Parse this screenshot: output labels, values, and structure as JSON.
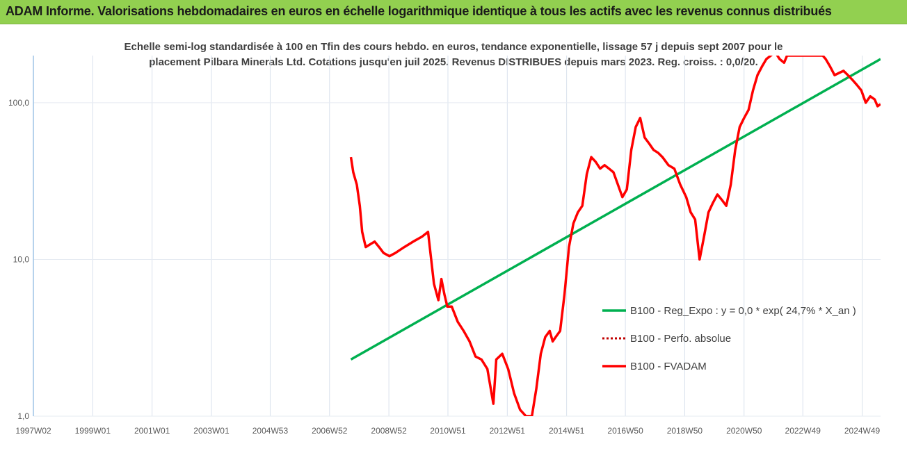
{
  "header": {
    "title": "ADAM Informe. Valorisations hebdomadaires en euros en échelle logarithmique identique à tous les actifs avec les revenus connus distribués"
  },
  "colors": {
    "header_bg": "#92d050",
    "accent_corner": "#f0c000",
    "series_fvadam": "#ff0000",
    "series_perfo": "#c00000",
    "series_reg": "#00b050",
    "grid": "#d9e1ec"
  },
  "chart_data": {
    "type": "line",
    "title_line1": "Echelle semi-log standardisée à 100 en Tfin des cours hebdo. en euros, tendance exponentielle, lissage 57 j depuis sept 2007  pour le",
    "title_line2": "placement Pilbara Minerals Ltd. Cotations jusqu'en juil 2025. Revenus DISTRIBUES depuis mars 2023.  Reg. croiss. : 0,0/20.",
    "y_scale": "log",
    "ylim": [
      1,
      200
    ],
    "y_ticks": [
      {
        "value": 1,
        "label": "1,0"
      },
      {
        "value": 10,
        "label": "10,0"
      },
      {
        "value": 100,
        "label": "100,0"
      }
    ],
    "xlim": [
      1997.0,
      2025.55
    ],
    "x_ticks": [
      {
        "x": 1997.0,
        "label": "1997W02"
      },
      {
        "x": 1999.0,
        "label": "1999W01"
      },
      {
        "x": 2001.0,
        "label": "2001W01"
      },
      {
        "x": 2003.0,
        "label": "2003W01"
      },
      {
        "x": 2004.98,
        "label": "2004W53"
      },
      {
        "x": 2006.98,
        "label": "2006W52"
      },
      {
        "x": 2008.98,
        "label": "2008W52"
      },
      {
        "x": 2010.97,
        "label": "2010W51"
      },
      {
        "x": 2012.97,
        "label": "2012W51"
      },
      {
        "x": 2014.97,
        "label": "2014W51"
      },
      {
        "x": 2016.95,
        "label": "2016W50"
      },
      {
        "x": 2018.95,
        "label": "2018W50"
      },
      {
        "x": 2020.95,
        "label": "2020W50"
      },
      {
        "x": 2022.93,
        "label": "2022W49"
      },
      {
        "x": 2024.93,
        "label": "2024W49"
      }
    ],
    "grid": "vertical",
    "legend_position": "right",
    "series": [
      {
        "name": "B100 - Reg_Expo : y = 0,0 * exp( 24,7% *  X_an )",
        "color": "#00b050",
        "style": "solid",
        "x": [
          2007.7,
          2025.55
        ],
        "y": [
          2.3,
          190
        ]
      },
      {
        "name": "B100 - Perfo. absolue",
        "color": "#c00000",
        "style": "dotted",
        "x": [],
        "y": []
      },
      {
        "name": "B100 - FVADAM",
        "color": "#ff0000",
        "style": "solid",
        "x": [
          2007.7,
          2007.78,
          2007.9,
          2008.0,
          2008.08,
          2008.2,
          2008.35,
          2008.5,
          2008.65,
          2008.8,
          2009.0,
          2009.2,
          2009.5,
          2009.8,
          2010.1,
          2010.3,
          2010.5,
          2010.65,
          2010.75,
          2010.85,
          2010.95,
          2011.1,
          2011.3,
          2011.5,
          2011.7,
          2011.9,
          2012.1,
          2012.3,
          2012.5,
          2012.6,
          2012.8,
          2013.0,
          2013.2,
          2013.4,
          2013.6,
          2013.8,
          2013.95,
          2014.1,
          2014.25,
          2014.4,
          2014.5,
          2014.6,
          2014.75,
          2014.9,
          2015.05,
          2015.2,
          2015.35,
          2015.5,
          2015.65,
          2015.8,
          2015.95,
          2016.1,
          2016.25,
          2016.4,
          2016.55,
          2016.7,
          2016.85,
          2017.0,
          2017.15,
          2017.3,
          2017.45,
          2017.6,
          2017.75,
          2017.9,
          2018.05,
          2018.2,
          2018.4,
          2018.6,
          2018.8,
          2019.0,
          2019.15,
          2019.3,
          2019.45,
          2019.6,
          2019.75,
          2019.9,
          2020.05,
          2020.2,
          2020.35,
          2020.5,
          2020.65,
          2020.8,
          2020.95,
          2021.1,
          2021.25,
          2021.4,
          2021.55,
          2021.7,
          2021.85,
          2022.0,
          2022.15,
          2022.3,
          2022.4,
          2022.45,
          2023.6,
          2023.7,
          2023.85,
          2024.0,
          2024.15,
          2024.3,
          2024.45,
          2024.6,
          2024.75,
          2024.9,
          2025.05,
          2025.2,
          2025.35,
          2025.45,
          2025.55
        ],
        "y": [
          45,
          36,
          30,
          22,
          15,
          12,
          12.5,
          13,
          12,
          11,
          10.5,
          11,
          12,
          13,
          14,
          15,
          7,
          5.5,
          7.5,
          6,
          5,
          5,
          4,
          3.5,
          3,
          2.4,
          2.3,
          2,
          1.2,
          2.3,
          2.5,
          2,
          1.4,
          1.1,
          1.0,
          1.0,
          1.5,
          2.5,
          3.2,
          3.5,
          3.0,
          3.2,
          3.5,
          6,
          12,
          17,
          20,
          22,
          35,
          45,
          42,
          38,
          40,
          38,
          36,
          30,
          25,
          28,
          50,
          70,
          80,
          60,
          55,
          50,
          48,
          45,
          40,
          38,
          30,
          25,
          20,
          18,
          10,
          14,
          20,
          23,
          26,
          24,
          22,
          30,
          50,
          70,
          80,
          90,
          120,
          150,
          170,
          190,
          200,
          210,
          190,
          180,
          200,
          200,
          200,
          190,
          170,
          150,
          155,
          160,
          150,
          140,
          130,
          120,
          100,
          110,
          105,
          95,
          98
        ]
      }
    ]
  }
}
